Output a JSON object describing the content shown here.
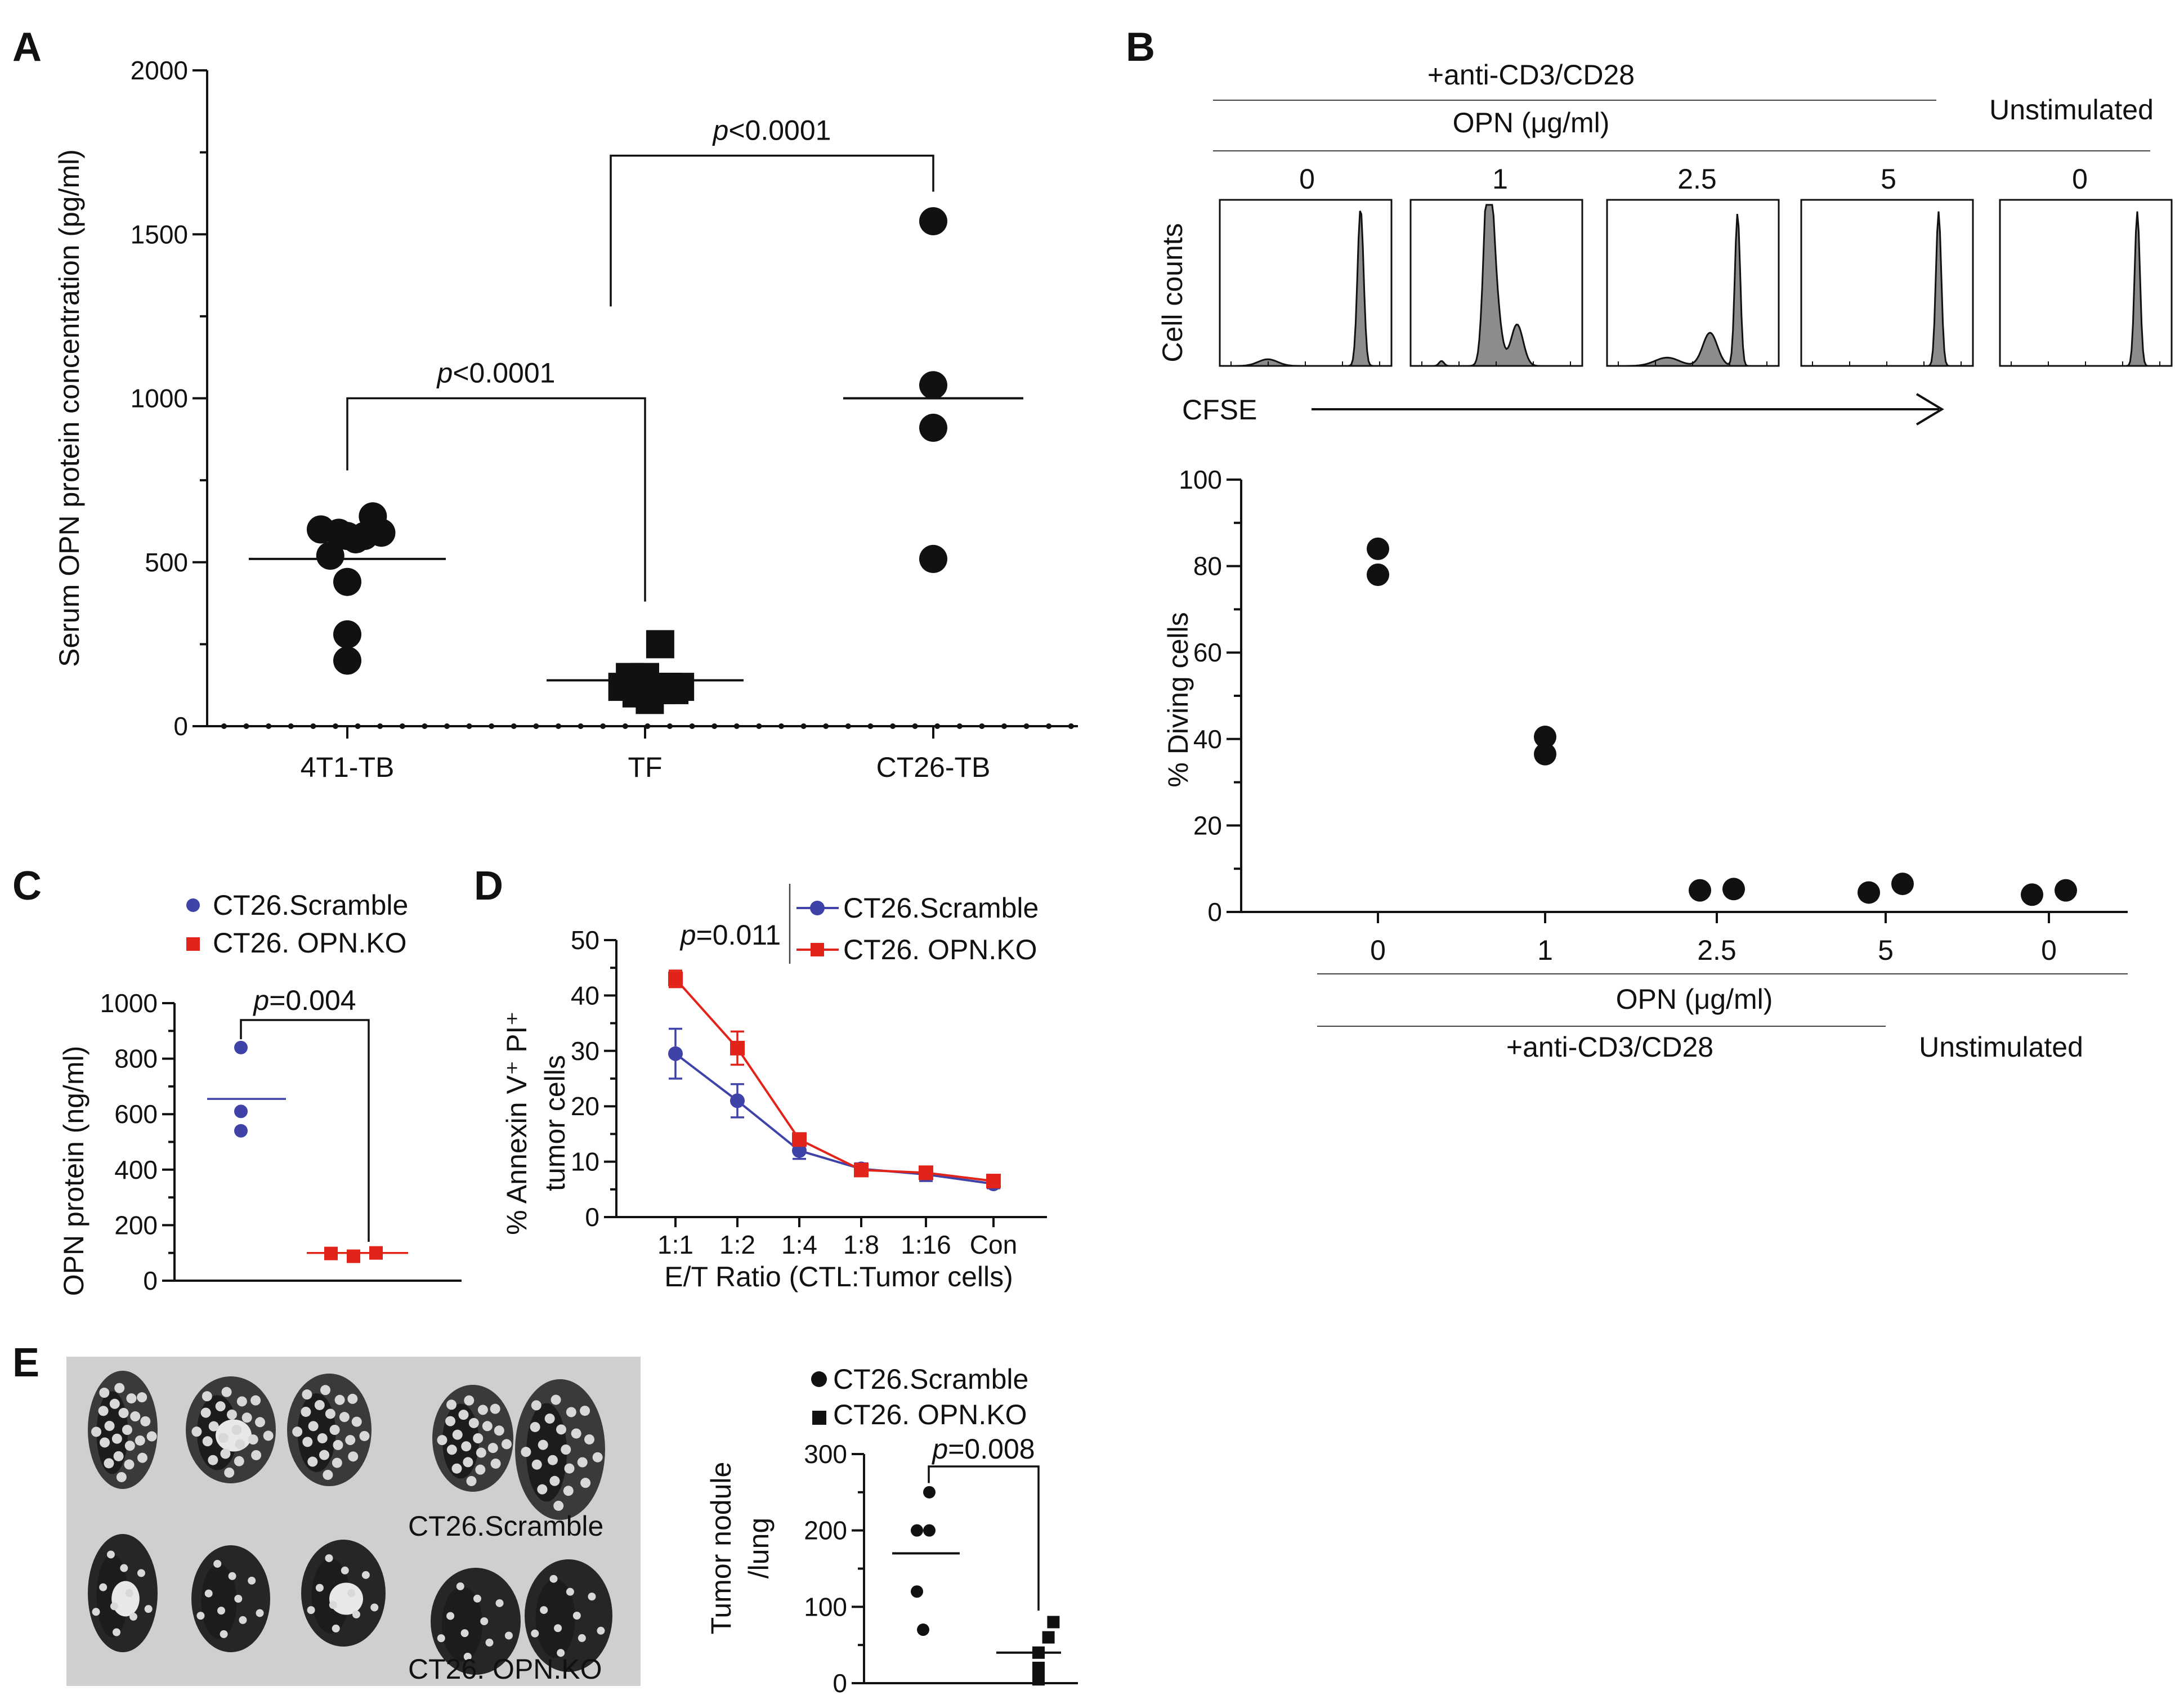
{
  "panels": {
    "A": "A",
    "B": "B",
    "C": "C",
    "D": "D",
    "E": "E"
  },
  "colors": {
    "black": "#111111",
    "blue": "#3f43a8",
    "red": "#e2231a",
    "photo_bg": "#cfcfcf",
    "hist_fill": "#8c8c8c"
  },
  "icons": {
    "arrow": "right-arrow-icon",
    "circle_marker": "circle-marker-icon",
    "square_marker": "square-marker-icon"
  },
  "chart_data": [
    {
      "id": "A",
      "type": "scatter",
      "title": "",
      "ylabel": "Serum OPN protein concentration (pg/ml)",
      "ylim": [
        0,
        2000
      ],
      "yticks": [
        0,
        500,
        1000,
        1500,
        2000
      ],
      "ytick_labels": [
        "0",
        "500",
        "1000",
        "1500",
        "2000"
      ],
      "categories": [
        "4T1-TB",
        "TF",
        "CT26-TB"
      ],
      "series": [
        {
          "name": "4T1-TB",
          "marker": "circle",
          "points": [
            [
              -0.28,
              600
            ],
            [
              -0.18,
              520
            ],
            [
              -0.09,
              590
            ],
            [
              0.0,
              580
            ],
            [
              0.09,
              570
            ],
            [
              0.18,
              580
            ],
            [
              0.27,
              640
            ],
            [
              0.36,
              590
            ],
            [
              0.0,
              440
            ],
            [
              0.0,
              280
            ],
            [
              0.0,
              200
            ]
          ],
          "mean": 510
        },
        {
          "name": "TF",
          "marker": "square",
          "points": [
            [
              -0.24,
              120
            ],
            [
              -0.16,
              150
            ],
            [
              -0.09,
              100
            ],
            [
              -0.02,
              130
            ],
            [
              0.05,
              80
            ],
            [
              0.0,
              150
            ],
            [
              0.09,
              120
            ],
            [
              0.17,
              110
            ],
            [
              0.24,
              120
            ],
            [
              0.31,
              110
            ],
            [
              0.37,
              120
            ],
            [
              0.16,
              250
            ]
          ],
          "mean": 140
        },
        {
          "name": "CT26-TB",
          "marker": "circle",
          "points": [
            [
              0,
              1540
            ],
            [
              0,
              1040
            ],
            [
              0,
              910
            ],
            [
              0,
              510
            ]
          ],
          "mean": 1000
        }
      ],
      "annotations": [
        {
          "p_label": "p",
          "value": "<0.0001",
          "between": [
            "4T1-TB",
            "TF"
          ],
          "y": 1000
        },
        {
          "p_label": "p",
          "value": "<0.0001",
          "between": [
            "TF",
            "CT26-TB"
          ],
          "y": 1740
        }
      ]
    },
    {
      "id": "B-hist",
      "type": "histogram",
      "header_top": "+anti-CD3/CD28",
      "header_opn": "OPN (μg/ml)",
      "header_unstim": "Unstimulated",
      "conditions": [
        "0",
        "1",
        "2.5",
        "5",
        "0"
      ],
      "ylabel": "Cell counts",
      "xlabel": "CFSE",
      "profiles": [
        "divided-small",
        "divided-broad",
        "divided-medium",
        "undivided",
        "undivided"
      ]
    },
    {
      "id": "B",
      "type": "scatter",
      "ylabel": "% Diving cells",
      "ylim": [
        0,
        100
      ],
      "yticks": [
        0,
        20,
        40,
        60,
        80,
        100
      ],
      "ytick_labels": [
        "0",
        "20",
        "40",
        "60",
        "80",
        "100"
      ],
      "categories": [
        "0",
        "1",
        "2.5",
        "5",
        "0"
      ],
      "xlabel": "OPN (μg/ml)",
      "group_labels": [
        "+anti-CD3/CD28",
        "Unstimulated"
      ],
      "points": [
        [
          0,
          84
        ],
        [
          0,
          78
        ],
        [
          1,
          40.5
        ],
        [
          1,
          36.5
        ],
        [
          1.9,
          5
        ],
        [
          2.1,
          5.3
        ],
        [
          2.9,
          4.5
        ],
        [
          3.1,
          6.5
        ],
        [
          3.9,
          4
        ],
        [
          4.1,
          5
        ]
      ]
    },
    {
      "id": "C",
      "type": "scatter",
      "ylabel": "OPN protein (ng/ml)",
      "ylim": [
        0,
        1000
      ],
      "yticks": [
        0,
        200,
        400,
        600,
        800,
        1000
      ],
      "ytick_labels": [
        "0",
        "200",
        "400",
        "600",
        "800",
        "1000"
      ],
      "legend": [
        "CT26.Scramble",
        "CT26. OPN.KO"
      ],
      "series": [
        {
          "name": "CT26.Scramble",
          "marker": "circle",
          "color": "#3f43a8",
          "values": [
            840,
            610,
            540
          ],
          "mean": 655
        },
        {
          "name": "CT26. OPN.KO",
          "marker": "square",
          "color": "#e2231a",
          "values": [
            98,
            88,
            100
          ],
          "mean": 100
        }
      ],
      "annotation": {
        "p_label": "p",
        "value": "=0.004"
      }
    },
    {
      "id": "D",
      "type": "line",
      "ylabel_line1": "% Annexin V⁺ PI⁺",
      "ylabel_line2": "tumor cells",
      "xlabel": "E/T Ratio (CTL:Tumor cells)",
      "categories": [
        "1:1",
        "1:2",
        "1:4",
        "1:8",
        "1:16",
        "Con"
      ],
      "ylim": [
        0,
        50
      ],
      "yticks": [
        0,
        10,
        20,
        30,
        40,
        50
      ],
      "ytick_labels": [
        "0",
        "10",
        "20",
        "30",
        "40",
        "50"
      ],
      "legend": [
        "CT26.Scramble",
        "CT26. OPN.KO"
      ],
      "series": [
        {
          "name": "CT26.Scramble",
          "color": "#3f43a8",
          "values": [
            29.5,
            21,
            12,
            8.7,
            7.7,
            6
          ],
          "err": [
            4.5,
            3,
            1.5,
            1,
            1.2,
            0.8
          ]
        },
        {
          "name": "CT26. OPN.KO",
          "color": "#e2231a",
          "values": [
            43,
            30.5,
            14,
            8.5,
            8,
            6.5
          ],
          "err": [
            1.5,
            3,
            1,
            0.8,
            1,
            0.8
          ]
        }
      ],
      "annotation": {
        "p_label": "p",
        "value": "=0.011"
      }
    },
    {
      "id": "E",
      "type": "scatter",
      "ylabel_line1": "Tumor nodule",
      "ylabel_line2": "/lung",
      "ylim": [
        0,
        300
      ],
      "yticks": [
        0,
        100,
        200,
        300
      ],
      "ytick_labels": [
        "0",
        "100",
        "200",
        "300"
      ],
      "legend": [
        "CT26.Scramble",
        "CT26. OPN.KO"
      ],
      "photo_labels": [
        "CT26.Scramble",
        "CT26. OPN.KO"
      ],
      "series": [
        {
          "name": "CT26.Scramble",
          "marker": "circle",
          "points": [
            [
              0.05,
              250
            ],
            [
              0.05,
              200
            ],
            [
              -0.05,
              200
            ],
            [
              -0.05,
              120
            ],
            [
              0.0,
              70
            ]
          ],
          "mean": 170
        },
        {
          "name": "CT26. OPN.KO",
          "marker": "square",
          "points": [
            [
              0.12,
              80
            ],
            [
              0.08,
              60
            ],
            [
              0.0,
              40
            ],
            [
              0.0,
              20
            ],
            [
              0.0,
              5
            ]
          ],
          "mean": 40
        }
      ],
      "annotation": {
        "p_label": "p",
        "value": "=0.008"
      }
    }
  ]
}
